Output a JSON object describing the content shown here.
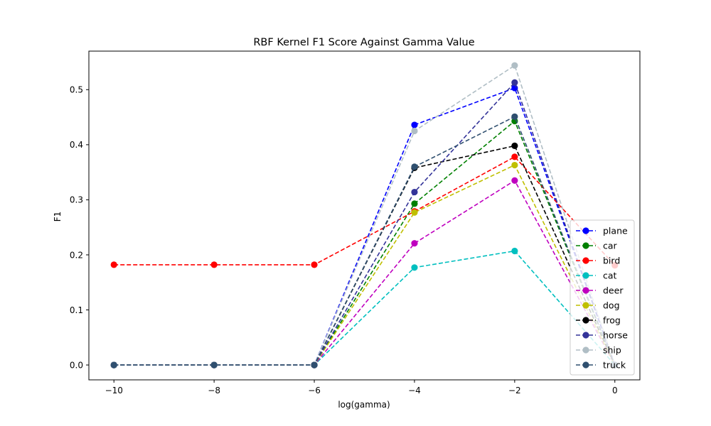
{
  "chart_data": {
    "type": "line",
    "title": "RBF Kernel F1 Score Against Gamma Value",
    "xlabel": "log(gamma)",
    "ylabel": "F1",
    "x": [
      -10,
      -8,
      -6,
      -4,
      -2,
      0
    ],
    "xlim": [
      -10.5,
      0.5
    ],
    "ylim": [
      -0.027,
      0.57
    ],
    "xticks": [
      -10,
      -8,
      -6,
      -4,
      -2,
      0
    ],
    "yticks": [
      0.0,
      0.1,
      0.2,
      0.3,
      0.4,
      0.5
    ],
    "xtick_labels": [
      "−10",
      "−8",
      "−6",
      "−4",
      "−2",
      "0"
    ],
    "ytick_labels": [
      "0.0",
      "0.1",
      "0.2",
      "0.3",
      "0.4",
      "0.5"
    ],
    "grid": false,
    "legend_position": "lower-right",
    "line_style": "dashed",
    "marker": "circle",
    "series": [
      {
        "name": "plane",
        "color": "#0000ff",
        "values": [
          0.0,
          0.0,
          0.0,
          0.436,
          0.503,
          0.0
        ]
      },
      {
        "name": "car",
        "color": "#008000",
        "values": [
          0.0,
          0.0,
          0.0,
          0.293,
          0.443,
          0.0
        ]
      },
      {
        "name": "bird",
        "color": "#ff0000",
        "values": [
          0.182,
          0.182,
          0.182,
          0.279,
          0.378,
          0.181
        ]
      },
      {
        "name": "cat",
        "color": "#00bfbf",
        "values": [
          0.0,
          0.0,
          0.0,
          0.177,
          0.207,
          0.0
        ]
      },
      {
        "name": "deer",
        "color": "#bf00bf",
        "values": [
          0.0,
          0.0,
          0.0,
          0.221,
          0.335,
          0.0
        ]
      },
      {
        "name": "dog",
        "color": "#bfbf00",
        "values": [
          0.0,
          0.0,
          0.0,
          0.277,
          0.363,
          0.0
        ]
      },
      {
        "name": "frog",
        "color": "#000000",
        "values": [
          0.0,
          0.0,
          0.0,
          0.358,
          0.398,
          0.0
        ]
      },
      {
        "name": "horse",
        "color": "#333399",
        "values": [
          0.0,
          0.0,
          0.0,
          0.314,
          0.513,
          0.0
        ]
      },
      {
        "name": "ship",
        "color": "#b0bec5",
        "values": [
          0.0,
          0.0,
          0.0,
          0.425,
          0.544,
          0.0
        ]
      },
      {
        "name": "truck",
        "color": "#2f4f6f",
        "values": [
          0.0,
          0.0,
          0.0,
          0.36,
          0.451,
          0.0
        ]
      }
    ]
  }
}
